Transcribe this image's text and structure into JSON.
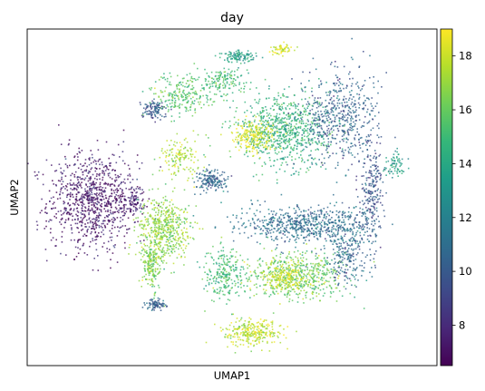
{
  "chart_data": {
    "type": "scatter",
    "title": "day",
    "xlabel": "UMAP1",
    "ylabel": "UMAP2",
    "xlim": [
      0,
      100
    ],
    "ylim": [
      0,
      100
    ],
    "grid": false,
    "x_ticks_shown": false,
    "y_ticks_shown": false,
    "colorbar": {
      "colormap": "viridis",
      "position": "right",
      "range": [
        6.5,
        19.0
      ],
      "ticks": [
        8,
        10,
        12,
        14,
        16,
        18
      ],
      "colors": [
        "#440154",
        "#482878",
        "#3e4a89",
        "#31688e",
        "#26828e",
        "#1f9e89",
        "#35b779",
        "#6ece58",
        "#b5de2b",
        "#fde725"
      ]
    },
    "clusters": [
      {
        "region": "left blob",
        "x": 16,
        "y": 49,
        "rx": 11,
        "ry": 15,
        "day": 7.2,
        "n": 900
      },
      {
        "region": "left blob tail",
        "x": 26,
        "y": 49,
        "rx": 3,
        "ry": 4,
        "day": 7.6,
        "n": 90
      },
      {
        "region": "center-left green blob",
        "x": 33.5,
        "y": 41,
        "rx": 6.5,
        "ry": 9,
        "day": 16.8,
        "n": 520
      },
      {
        "region": "green stream",
        "x": 30.5,
        "y": 30,
        "rx": 2.5,
        "ry": 8,
        "day": 16.4,
        "n": 200
      },
      {
        "region": "small bottom-left cluster",
        "x": 31.5,
        "y": 18,
        "rx": 3,
        "ry": 1.6,
        "day": 10.2,
        "n": 80
      },
      {
        "region": "upper-right teal cluster",
        "x": 63,
        "y": 70,
        "rx": 11,
        "ry": 10,
        "day": 14.5,
        "n": 750
      },
      {
        "region": "upper-right yellow core",
        "x": 55,
        "y": 68,
        "rx": 5,
        "ry": 5,
        "day": 18.2,
        "n": 220
      },
      {
        "region": "purple fan",
        "x": 76,
        "y": 74,
        "rx": 9,
        "ry": 14,
        "day": 10.5,
        "n": 520
      },
      {
        "region": "right arc",
        "x": 84,
        "y": 52,
        "rx": 3,
        "ry": 16,
        "day": 9.8,
        "n": 250
      },
      {
        "region": "central band",
        "x": 68,
        "y": 42,
        "rx": 16,
        "ry": 5.5,
        "day": 11.0,
        "n": 650
      },
      {
        "region": "lower-right green",
        "x": 66,
        "y": 27,
        "rx": 12,
        "ry": 7,
        "day": 16.0,
        "n": 500
      },
      {
        "region": "lower-right yellow",
        "x": 63,
        "y": 26,
        "rx": 6,
        "ry": 4,
        "day": 18.0,
        "n": 220
      },
      {
        "region": "bottom yellow",
        "x": 55,
        "y": 10,
        "rx": 7,
        "ry": 4,
        "day": 17.8,
        "n": 300
      },
      {
        "region": "mid-lower mixed",
        "x": 48,
        "y": 27,
        "rx": 5,
        "ry": 8,
        "day": 15.0,
        "n": 240
      },
      {
        "region": "mid cluster",
        "x": 45,
        "y": 55,
        "rx": 4,
        "ry": 3,
        "day": 10.5,
        "n": 160
      },
      {
        "region": "left-upper purple blob",
        "x": 31,
        "y": 76,
        "rx": 3,
        "ry": 2.5,
        "day": 10.0,
        "n": 110
      },
      {
        "region": "top teal",
        "x": 52,
        "y": 92,
        "rx": 4,
        "ry": 1.8,
        "day": 13.5,
        "n": 110
      },
      {
        "region": "top yellow",
        "x": 62,
        "y": 94,
        "rx": 2.5,
        "ry": 1.5,
        "day": 18.3,
        "n": 60
      },
      {
        "region": "upper-left wisps",
        "x": 38,
        "y": 80,
        "rx": 7,
        "ry": 6,
        "day": 15.5,
        "n": 220
      },
      {
        "region": "top scatter",
        "x": 48,
        "y": 85,
        "rx": 6,
        "ry": 4,
        "day": 15.0,
        "n": 150
      },
      {
        "region": "mid-left wisps",
        "x": 37,
        "y": 62,
        "rx": 5,
        "ry": 6,
        "day": 17.5,
        "n": 140
      },
      {
        "region": "right small",
        "x": 90,
        "y": 60,
        "rx": 3,
        "ry": 3,
        "day": 13.5,
        "n": 70
      },
      {
        "region": "lower-right purple streaks",
        "x": 78,
        "y": 33,
        "rx": 5,
        "ry": 10,
        "day": 10.8,
        "n": 220
      }
    ]
  }
}
